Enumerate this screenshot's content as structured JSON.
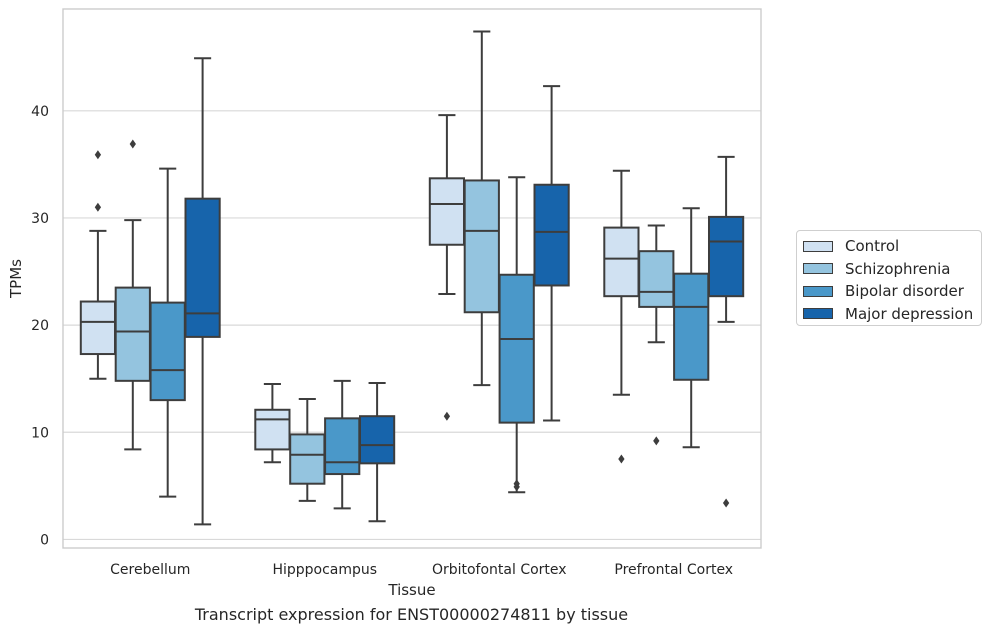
{
  "chart_data": {
    "type": "box",
    "title": "Transcript expression for ENST00000274811 by tissue",
    "xlabel": "Tissue",
    "ylabel": "TPMs",
    "ylim": [
      -0.8,
      49.5
    ],
    "yticks": [
      0,
      10,
      20,
      30,
      40
    ],
    "grid": "horizontal",
    "legend_placement": "right",
    "categories": [
      "Cerebellum",
      "Hipppocampus",
      "Orbitofontal Cortex",
      "Prefrontal Cortex"
    ],
    "series": [
      {
        "name": "Control",
        "color": "#d0e1f2",
        "boxes": [
          {
            "whislo": 15.0,
            "q1": 17.3,
            "med": 20.3,
            "q3": 22.2,
            "whishi": 28.8,
            "fliers": [
              31.0,
              35.9
            ]
          },
          {
            "whislo": 7.2,
            "q1": 8.4,
            "med": 11.2,
            "q3": 12.1,
            "whishi": 14.5,
            "fliers": []
          },
          {
            "whislo": 22.9,
            "q1": 27.5,
            "med": 31.3,
            "q3": 33.7,
            "whishi": 39.6,
            "fliers": [
              11.5
            ]
          },
          {
            "whislo": 13.5,
            "q1": 22.7,
            "med": 26.2,
            "q3": 29.1,
            "whishi": 34.4,
            "fliers": [
              7.5
            ]
          }
        ]
      },
      {
        "name": "Schizophrenia",
        "color": "#94c4df",
        "boxes": [
          {
            "whislo": 8.4,
            "q1": 14.8,
            "med": 19.4,
            "q3": 23.5,
            "whishi": 29.8,
            "fliers": [
              36.9
            ]
          },
          {
            "whislo": 3.6,
            "q1": 5.2,
            "med": 7.9,
            "q3": 9.8,
            "whishi": 13.1,
            "fliers": []
          },
          {
            "whislo": 14.4,
            "q1": 21.2,
            "med": 28.8,
            "q3": 33.5,
            "whishi": 47.4,
            "fliers": []
          },
          {
            "whislo": 18.4,
            "q1": 21.7,
            "med": 23.1,
            "q3": 26.9,
            "whishi": 29.3,
            "fliers": [
              9.2
            ]
          }
        ]
      },
      {
        "name": "Bipolar disorder",
        "color": "#4a98c9",
        "boxes": [
          {
            "whislo": 4.0,
            "q1": 13.0,
            "med": 15.8,
            "q3": 22.1,
            "whishi": 34.6,
            "fliers": []
          },
          {
            "whislo": 2.9,
            "q1": 6.1,
            "med": 7.2,
            "q3": 11.3,
            "whishi": 14.8,
            "fliers": []
          },
          {
            "whislo": 4.4,
            "q1": 10.9,
            "med": 18.7,
            "q3": 24.7,
            "whishi": 33.8,
            "fliers": [
              4.9,
              5.2
            ]
          },
          {
            "whislo": 8.6,
            "q1": 14.9,
            "med": 21.7,
            "q3": 24.8,
            "whishi": 30.9,
            "fliers": []
          }
        ]
      },
      {
        "name": "Major depression",
        "color": "#1764ab",
        "boxes": [
          {
            "whislo": 1.4,
            "q1": 18.9,
            "med": 21.1,
            "q3": 31.8,
            "whishi": 44.9,
            "fliers": []
          },
          {
            "whislo": 1.7,
            "q1": 7.1,
            "med": 8.8,
            "q3": 11.5,
            "whishi": 14.6,
            "fliers": []
          },
          {
            "whislo": 11.1,
            "q1": 23.7,
            "med": 28.7,
            "q3": 33.1,
            "whishi": 42.3,
            "fliers": []
          },
          {
            "whislo": 20.3,
            "q1": 22.7,
            "med": 27.8,
            "q3": 30.1,
            "whishi": 35.7,
            "fliers": [
              3.4
            ]
          }
        ]
      }
    ]
  }
}
